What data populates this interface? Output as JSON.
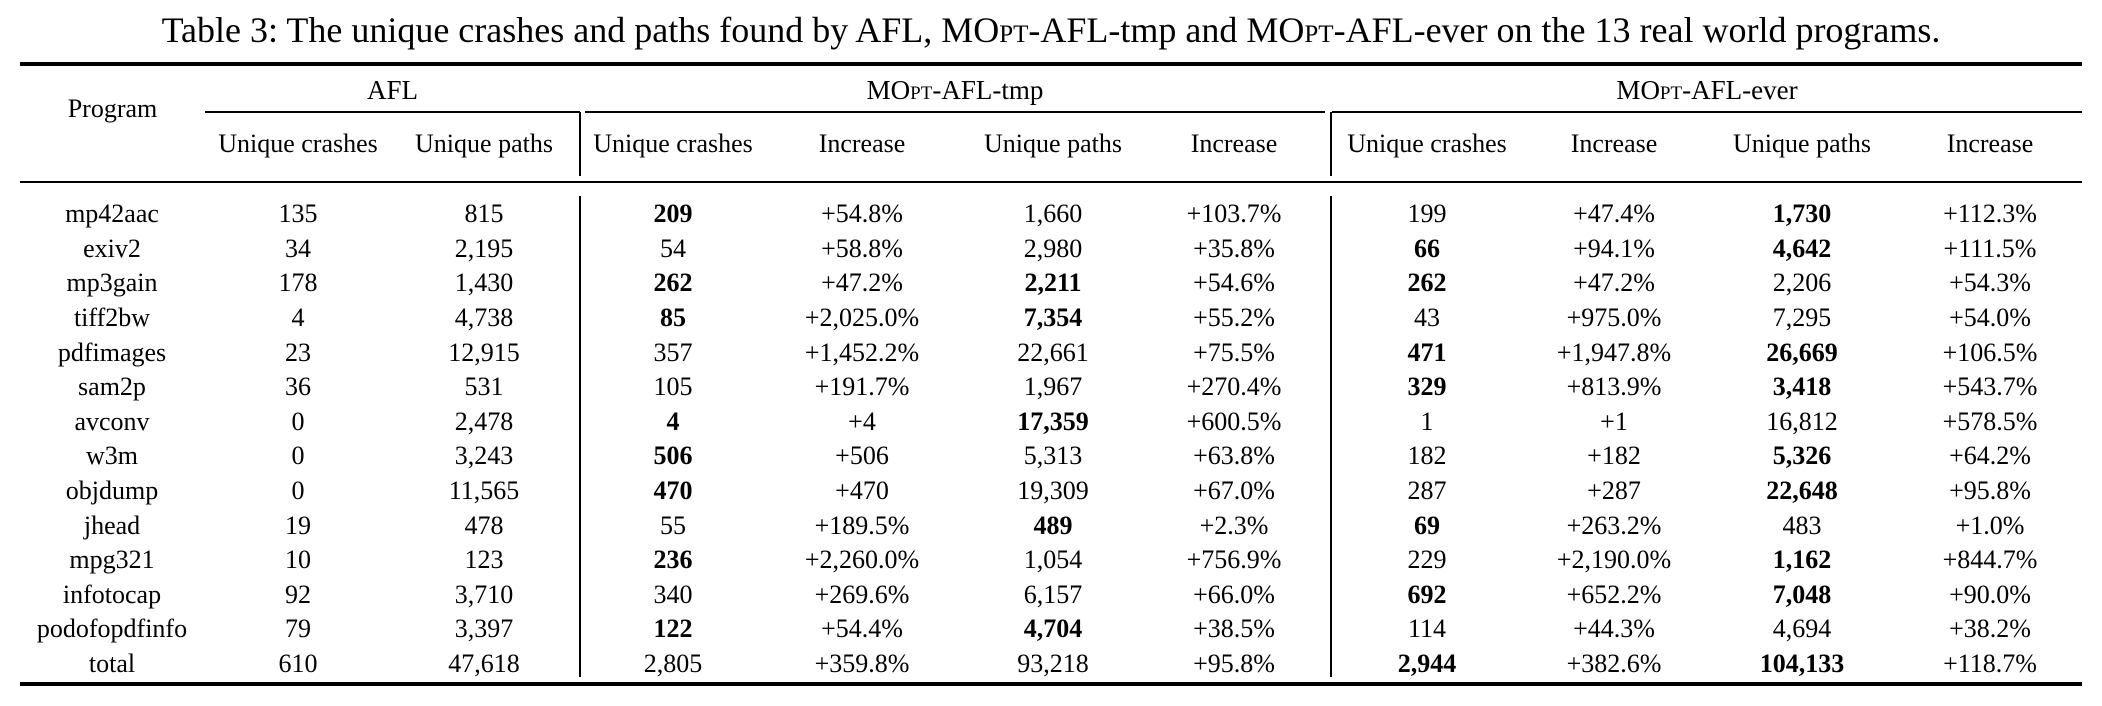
{
  "caption": {
    "part1": "Table 3: The unique crashes and paths found by AFL, M",
    "sc1": "Opt",
    "part2": "-AFL-tmp and M",
    "sc2": "Opt",
    "part3": "-AFL-ever on the 13 real world programs."
  },
  "header": {
    "program": "Program",
    "afl": "AFL",
    "tmp_prefix": "M",
    "tmp_sc": "Opt",
    "tmp_suffix": "-AFL-tmp",
    "ever_prefix": "M",
    "ever_sc": "Opt",
    "ever_suffix": "-AFL-ever",
    "unique_crashes": "Unique crashes",
    "unique_paths": "Unique paths",
    "increase": "Increase"
  },
  "rows": [
    {
      "program": "mp42aac",
      "afl_crashes": "135",
      "afl_paths": "815",
      "tmp_crashes": "209",
      "tmp_crash_inc": "+54.8%",
      "tmp_paths": "1,660",
      "tmp_path_inc": "+103.7%",
      "ever_crashes": "199",
      "ever_crash_inc": "+47.4%",
      "ever_paths": "1,730",
      "ever_path_inc": "+112.3%",
      "bold": [
        "tmp_crashes",
        "ever_paths"
      ]
    },
    {
      "program": "exiv2",
      "afl_crashes": "34",
      "afl_paths": "2,195",
      "tmp_crashes": "54",
      "tmp_crash_inc": "+58.8%",
      "tmp_paths": "2,980",
      "tmp_path_inc": "+35.8%",
      "ever_crashes": "66",
      "ever_crash_inc": "+94.1%",
      "ever_paths": "4,642",
      "ever_path_inc": "+111.5%",
      "bold": [
        "ever_crashes",
        "ever_paths"
      ]
    },
    {
      "program": "mp3gain",
      "afl_crashes": "178",
      "afl_paths": "1,430",
      "tmp_crashes": "262",
      "tmp_crash_inc": "+47.2%",
      "tmp_paths": "2,211",
      "tmp_path_inc": "+54.6%",
      "ever_crashes": "262",
      "ever_crash_inc": "+47.2%",
      "ever_paths": "2,206",
      "ever_path_inc": "+54.3%",
      "bold": [
        "tmp_crashes",
        "tmp_paths",
        "ever_crashes"
      ]
    },
    {
      "program": "tiff2bw",
      "afl_crashes": "4",
      "afl_paths": "4,738",
      "tmp_crashes": "85",
      "tmp_crash_inc": "+2,025.0%",
      "tmp_paths": "7,354",
      "tmp_path_inc": "+55.2%",
      "ever_crashes": "43",
      "ever_crash_inc": "+975.0%",
      "ever_paths": "7,295",
      "ever_path_inc": "+54.0%",
      "bold": [
        "tmp_crashes",
        "tmp_paths"
      ]
    },
    {
      "program": "pdfimages",
      "afl_crashes": "23",
      "afl_paths": "12,915",
      "tmp_crashes": "357",
      "tmp_crash_inc": "+1,452.2%",
      "tmp_paths": "22,661",
      "tmp_path_inc": "+75.5%",
      "ever_crashes": "471",
      "ever_crash_inc": "+1,947.8%",
      "ever_paths": "26,669",
      "ever_path_inc": "+106.5%",
      "bold": [
        "ever_crashes",
        "ever_paths"
      ]
    },
    {
      "program": "sam2p",
      "afl_crashes": "36",
      "afl_paths": "531",
      "tmp_crashes": "105",
      "tmp_crash_inc": "+191.7%",
      "tmp_paths": "1,967",
      "tmp_path_inc": "+270.4%",
      "ever_crashes": "329",
      "ever_crash_inc": "+813.9%",
      "ever_paths": "3,418",
      "ever_path_inc": "+543.7%",
      "bold": [
        "ever_crashes",
        "ever_paths"
      ]
    },
    {
      "program": "avconv",
      "afl_crashes": "0",
      "afl_paths": "2,478",
      "tmp_crashes": "4",
      "tmp_crash_inc": "+4",
      "tmp_paths": "17,359",
      "tmp_path_inc": "+600.5%",
      "ever_crashes": "1",
      "ever_crash_inc": "+1",
      "ever_paths": "16,812",
      "ever_path_inc": "+578.5%",
      "bold": [
        "tmp_crashes",
        "tmp_paths"
      ]
    },
    {
      "program": "w3m",
      "afl_crashes": "0",
      "afl_paths": "3,243",
      "tmp_crashes": "506",
      "tmp_crash_inc": "+506",
      "tmp_paths": "5,313",
      "tmp_path_inc": "+63.8%",
      "ever_crashes": "182",
      "ever_crash_inc": "+182",
      "ever_paths": "5,326",
      "ever_path_inc": "+64.2%",
      "bold": [
        "tmp_crashes",
        "ever_paths"
      ]
    },
    {
      "program": "objdump",
      "afl_crashes": "0",
      "afl_paths": "11,565",
      "tmp_crashes": "470",
      "tmp_crash_inc": "+470",
      "tmp_paths": "19,309",
      "tmp_path_inc": "+67.0%",
      "ever_crashes": "287",
      "ever_crash_inc": "+287",
      "ever_paths": "22,648",
      "ever_path_inc": "+95.8%",
      "bold": [
        "tmp_crashes",
        "ever_paths"
      ]
    },
    {
      "program": "jhead",
      "afl_crashes": "19",
      "afl_paths": "478",
      "tmp_crashes": "55",
      "tmp_crash_inc": "+189.5%",
      "tmp_paths": "489",
      "tmp_path_inc": "+2.3%",
      "ever_crashes": "69",
      "ever_crash_inc": "+263.2%",
      "ever_paths": "483",
      "ever_path_inc": "+1.0%",
      "bold": [
        "tmp_paths",
        "ever_crashes"
      ]
    },
    {
      "program": "mpg321",
      "afl_crashes": "10",
      "afl_paths": "123",
      "tmp_crashes": "236",
      "tmp_crash_inc": "+2,260.0%",
      "tmp_paths": "1,054",
      "tmp_path_inc": "+756.9%",
      "ever_crashes": "229",
      "ever_crash_inc": "+2,190.0%",
      "ever_paths": "1,162",
      "ever_path_inc": "+844.7%",
      "bold": [
        "tmp_crashes",
        "ever_paths"
      ]
    },
    {
      "program": "infotocap",
      "afl_crashes": "92",
      "afl_paths": "3,710",
      "tmp_crashes": "340",
      "tmp_crash_inc": "+269.6%",
      "tmp_paths": "6,157",
      "tmp_path_inc": "+66.0%",
      "ever_crashes": "692",
      "ever_crash_inc": "+652.2%",
      "ever_paths": "7,048",
      "ever_path_inc": "+90.0%",
      "bold": [
        "ever_crashes",
        "ever_paths"
      ]
    },
    {
      "program": "podofopdfinfo",
      "afl_crashes": "79",
      "afl_paths": "3,397",
      "tmp_crashes": "122",
      "tmp_crash_inc": "+54.4%",
      "tmp_paths": "4,704",
      "tmp_path_inc": "+38.5%",
      "ever_crashes": "114",
      "ever_crash_inc": "+44.3%",
      "ever_paths": "4,694",
      "ever_path_inc": "+38.2%",
      "bold": [
        "tmp_crashes",
        "tmp_paths"
      ]
    },
    {
      "program": "total",
      "afl_crashes": "610",
      "afl_paths": "47,618",
      "tmp_crashes": "2,805",
      "tmp_crash_inc": "+359.8%",
      "tmp_paths": "93,218",
      "tmp_path_inc": "+95.8%",
      "ever_crashes": "2,944",
      "ever_crash_inc": "+382.6%",
      "ever_paths": "104,133",
      "ever_path_inc": "+118.7%",
      "bold": [
        "ever_crashes",
        "ever_paths"
      ]
    }
  ]
}
